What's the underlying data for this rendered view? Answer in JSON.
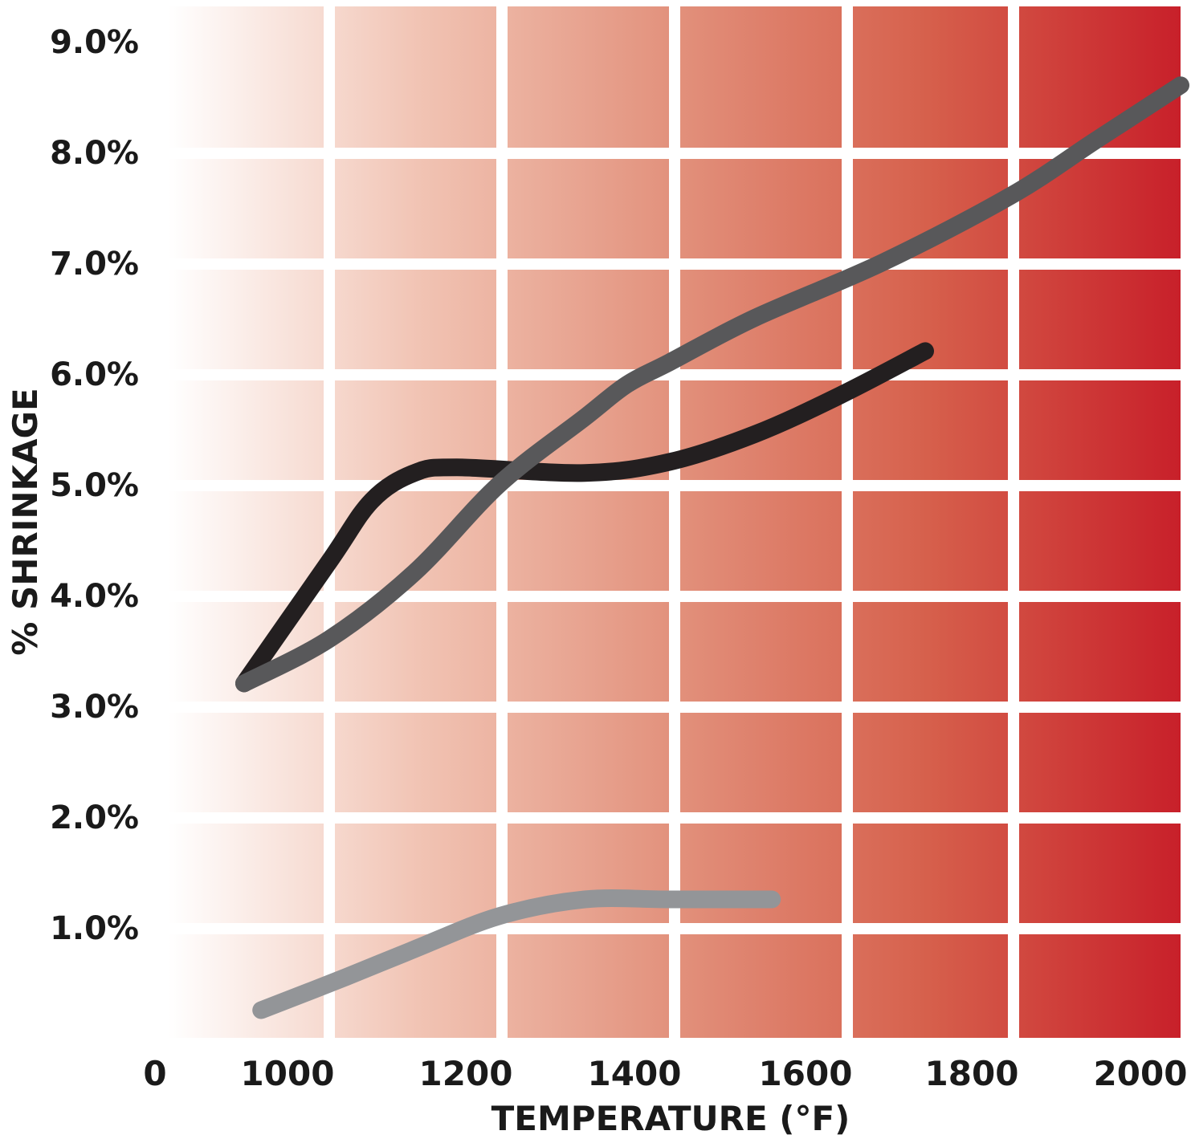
{
  "chart_data": {
    "type": "line",
    "title": "",
    "xlabel": "TEMPERATURE (°F)",
    "ylabel": "% SHRINKAGE",
    "x_ticks": [
      "0",
      "1000",
      "1200",
      "1400",
      "1600",
      "1800",
      "2000"
    ],
    "y_ticks": [
      "1.0%",
      "2.0%",
      "3.0%",
      "4.0%",
      "5.0%",
      "6.0%",
      "7.0%",
      "8.0%",
      "9.0%"
    ],
    "xlim": [
      800,
      2000
    ],
    "ylim": [
      0,
      9
    ],
    "grid": true,
    "legend": "none",
    "background_gradient": [
      "#ffffff",
      "#c8202a"
    ],
    "series": [
      {
        "color": "#231f20",
        "points": [
          [
            900,
            3.2
          ],
          [
            1000,
            4.3
          ],
          [
            1050,
            4.85
          ],
          [
            1100,
            5.1
          ],
          [
            1150,
            5.15
          ],
          [
            1300,
            5.1
          ],
          [
            1400,
            5.2
          ],
          [
            1500,
            5.45
          ],
          [
            1600,
            5.8
          ],
          [
            1700,
            6.2
          ]
        ]
      },
      {
        "color": "#58585a",
        "points": [
          [
            900,
            3.2
          ],
          [
            1000,
            3.6
          ],
          [
            1100,
            4.2
          ],
          [
            1200,
            5.0
          ],
          [
            1300,
            5.6
          ],
          [
            1350,
            5.9
          ],
          [
            1400,
            6.1
          ],
          [
            1500,
            6.5
          ],
          [
            1650,
            7.0
          ],
          [
            1800,
            7.6
          ],
          [
            1900,
            8.1
          ],
          [
            2000,
            8.6
          ]
        ]
      },
      {
        "color": "#939598",
        "points": [
          [
            920,
            0.25
          ],
          [
            1020,
            0.55
          ],
          [
            1100,
            0.8
          ],
          [
            1200,
            1.1
          ],
          [
            1300,
            1.25
          ],
          [
            1400,
            1.25
          ],
          [
            1520,
            1.25
          ]
        ]
      }
    ]
  }
}
